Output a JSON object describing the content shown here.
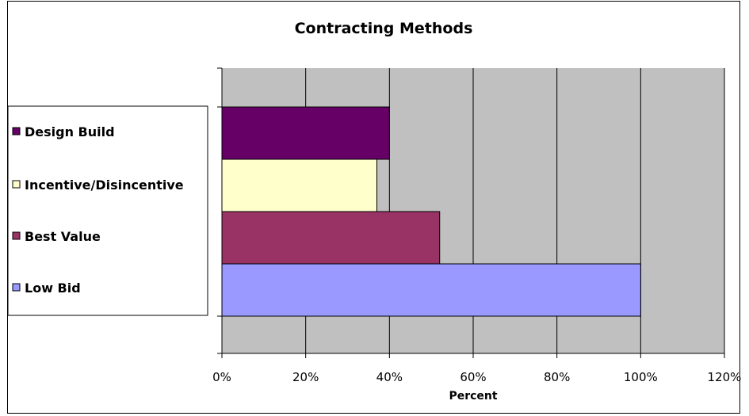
{
  "chart_data": {
    "type": "bar",
    "orientation": "horizontal",
    "title": "Contracting Methods",
    "xlabel": "Percent",
    "ylabel": "",
    "xlim": [
      0,
      1.2
    ],
    "x_ticks": [
      "0%",
      "20%",
      "40%",
      "60%",
      "80%",
      "100%",
      "120%"
    ],
    "x_tick_values": [
      0,
      0.2,
      0.4,
      0.6,
      0.8,
      1.0,
      1.2
    ],
    "grid": true,
    "plot_background": "#c0c0c0",
    "legend_position": "left",
    "categories": [
      "Design Build",
      "Incentive/Disincentive",
      "Best Value",
      "Low Bid"
    ],
    "values": [
      0.4,
      0.37,
      0.52,
      1.0
    ],
    "colors": [
      "#660066",
      "#ffffcc",
      "#993366",
      "#9999ff"
    ]
  }
}
